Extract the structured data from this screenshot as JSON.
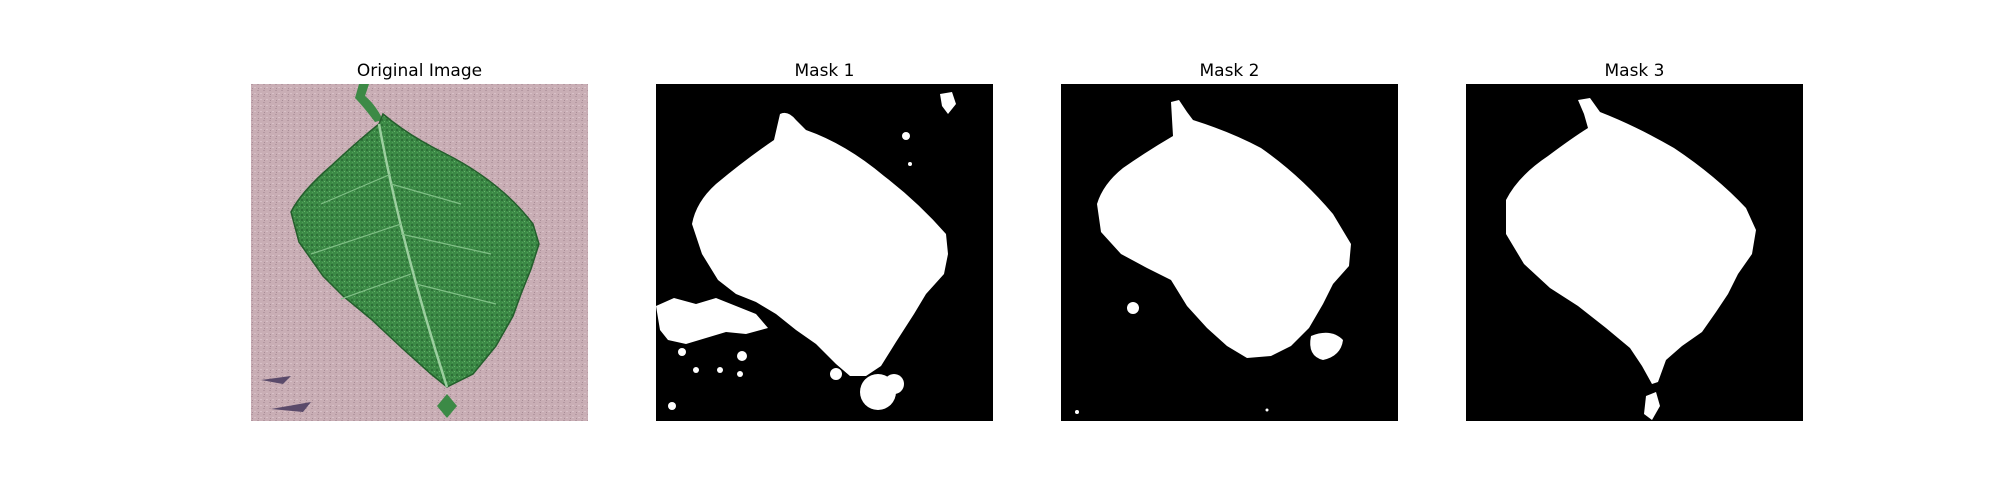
{
  "figure": {
    "panels": [
      {
        "title": "Original Image"
      },
      {
        "title": "Mask 1"
      },
      {
        "title": "Mask 2"
      },
      {
        "title": "Mask 3"
      }
    ]
  },
  "colors": {
    "background": "#ffffff",
    "mask_foreground": "#ffffff",
    "mask_background": "#000000",
    "leaf_green": "#3f8a48",
    "surface_pink": "#c7abb2"
  }
}
